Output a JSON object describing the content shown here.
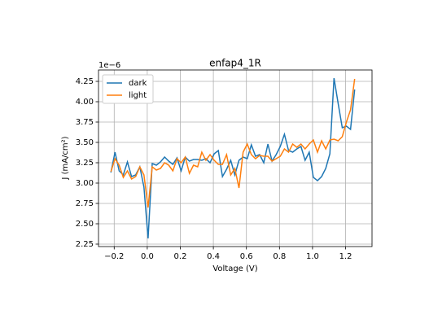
{
  "chart_data": {
    "type": "line",
    "title": "enfap4_1R",
    "xlabel": "Voltage (V)",
    "ylabel": "J (mA/cm²)",
    "y_offset_label": "1e−6",
    "x": [
      -0.22,
      -0.195,
      -0.17,
      -0.145,
      -0.12,
      -0.095,
      -0.07,
      -0.045,
      -0.02,
      0.005,
      0.03,
      0.055,
      0.08,
      0.105,
      0.13,
      0.155,
      0.18,
      0.205,
      0.23,
      0.255,
      0.28,
      0.305,
      0.33,
      0.355,
      0.38,
      0.405,
      0.43,
      0.455,
      0.48,
      0.505,
      0.53,
      0.555,
      0.58,
      0.605,
      0.63,
      0.655,
      0.68,
      0.705,
      0.73,
      0.755,
      0.78,
      0.805,
      0.83,
      0.855,
      0.88,
      0.905,
      0.93,
      0.955,
      0.98,
      1.005,
      1.03,
      1.055,
      1.08,
      1.105,
      1.13,
      1.155,
      1.18,
      1.205,
      1.23,
      1.255
    ],
    "series": [
      {
        "name": "dark",
        "color": "#1f77b4",
        "values": [
          3.13,
          3.38,
          3.15,
          3.1,
          3.26,
          3.08,
          3.1,
          3.2,
          2.95,
          2.32,
          3.24,
          3.22,
          3.26,
          3.32,
          3.27,
          3.23,
          3.31,
          3.15,
          3.32,
          3.27,
          3.29,
          3.29,
          3.28,
          3.3,
          3.25,
          3.36,
          3.4,
          3.08,
          3.17,
          3.28,
          3.1,
          3.28,
          3.32,
          3.3,
          3.47,
          3.33,
          3.35,
          3.25,
          3.48,
          3.27,
          3.35,
          3.45,
          3.6,
          3.4,
          3.38,
          3.42,
          3.45,
          3.28,
          3.38,
          3.07,
          3.03,
          3.08,
          3.18,
          3.36,
          4.29,
          3.98,
          3.68,
          3.7,
          3.66,
          4.15
        ]
      },
      {
        "name": "light",
        "color": "#ff7f0e",
        "values": [
          3.14,
          3.3,
          3.22,
          3.07,
          3.15,
          3.05,
          3.08,
          3.2,
          3.1,
          2.7,
          3.2,
          3.16,
          3.18,
          3.25,
          3.22,
          3.15,
          3.3,
          3.25,
          3.32,
          3.12,
          3.22,
          3.2,
          3.38,
          3.28,
          3.35,
          3.28,
          3.23,
          3.23,
          3.35,
          3.1,
          3.18,
          2.94,
          3.38,
          3.48,
          3.35,
          3.3,
          3.34,
          3.33,
          3.33,
          3.27,
          3.3,
          3.33,
          3.42,
          3.38,
          3.48,
          3.44,
          3.48,
          3.42,
          3.48,
          3.53,
          3.38,
          3.52,
          3.42,
          3.53,
          3.54,
          3.52,
          3.57,
          3.75,
          3.9,
          4.28
        ]
      }
    ],
    "xlim": [
      -0.295,
      1.36
    ],
    "xticks": [
      {
        "value": -0.2,
        "label": "−0.2"
      },
      {
        "value": 0,
        "label": "0.0"
      },
      0.2,
      0.4,
      0.6,
      0.8,
      {
        "value": 1,
        "label": "1.0"
      },
      1.2
    ],
    "ylim": [
      2.22,
      4.39
    ],
    "yticks": [
      2.25,
      {
        "value": 2.5,
        "label": "2.50"
      },
      2.75,
      {
        "value": 3,
        "label": "3.00"
      },
      3.25,
      {
        "value": 3.5,
        "label": "3.50"
      },
      3.75,
      {
        "value": 4,
        "label": "4.00"
      },
      4.25
    ],
    "grid": true,
    "legend": "upper left"
  }
}
